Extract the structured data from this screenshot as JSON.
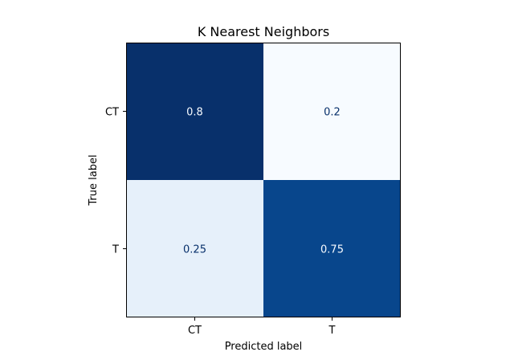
{
  "chart_data": {
    "type": "heatmap",
    "title": "K Nearest Neighbors",
    "xlabel": "Predicted label",
    "ylabel": "True label",
    "x_categories": [
      "CT",
      "T"
    ],
    "y_categories": [
      "CT",
      "T"
    ],
    "values": [
      [
        0.8,
        0.2
      ],
      [
        0.25,
        0.75
      ]
    ],
    "value_labels": [
      [
        "0.8",
        "0.2"
      ],
      [
        "0.25",
        "0.75"
      ]
    ],
    "colormap": "Blues",
    "color_range": [
      0.2,
      0.8
    ],
    "colors": {
      "low": "#f7fbff",
      "high": "#08306b",
      "text_on_dark": "#f7fbff",
      "text_on_light": "#08306b"
    },
    "grid": false,
    "colorbar": false
  }
}
